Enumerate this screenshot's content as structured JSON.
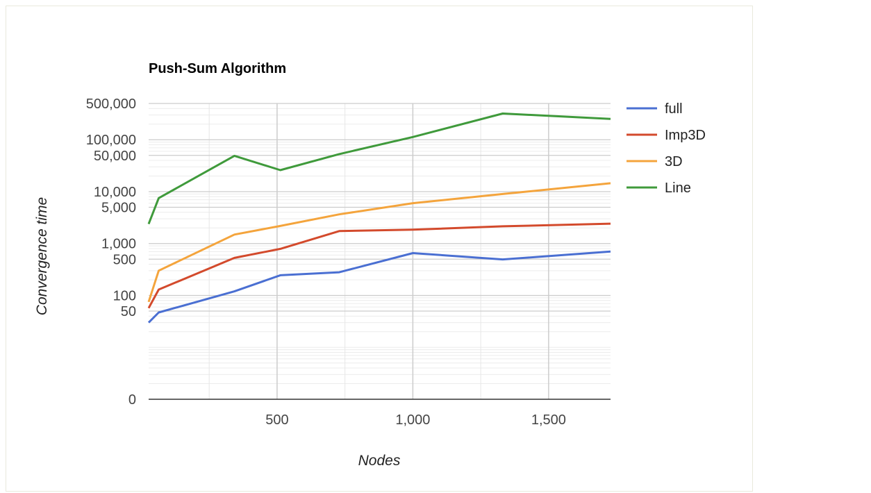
{
  "chart_data": {
    "type": "line",
    "title": "Push-Sum Algorithm",
    "xlabel": "Nodes",
    "ylabel": "Convergence time",
    "y_scale": "log",
    "ylim": [
      1,
      500000
    ],
    "xlim": [
      27,
      1728
    ],
    "grid": true,
    "legend_position": "right",
    "y_ticks": [
      {
        "value": 500000,
        "label": "500,000"
      },
      {
        "value": 100000,
        "label": "100,000"
      },
      {
        "value": 50000,
        "label": "50,000"
      },
      {
        "value": 10000,
        "label": "10,000"
      },
      {
        "value": 5000,
        "label": "5,000"
      },
      {
        "value": 1000,
        "label": "1,000"
      },
      {
        "value": 500,
        "label": "500"
      },
      {
        "value": 100,
        "label": "100"
      },
      {
        "value": 50,
        "label": "50"
      },
      {
        "value": 1,
        "label": "0"
      }
    ],
    "x_ticks": [
      {
        "value": 500,
        "label": "500"
      },
      {
        "value": 1000,
        "label": "1,000"
      },
      {
        "value": 1500,
        "label": "1,500"
      }
    ],
    "x": [
      27,
      64,
      343,
      512,
      729,
      1000,
      1331,
      1728
    ],
    "series": [
      {
        "name": "full",
        "color": "#4a6fd2",
        "values": [
          30,
          47,
          120,
          245,
          280,
          655,
          495,
          700
        ]
      },
      {
        "name": "Imp3D",
        "color": "#d34a2c",
        "values": [
          57,
          130,
          530,
          790,
          1740,
          1850,
          2150,
          2420
        ]
      },
      {
        "name": "3D",
        "color": "#f4a43c",
        "values": [
          75,
          300,
          1490,
          2180,
          3650,
          6000,
          9000,
          14500
        ]
      },
      {
        "name": "Line",
        "color": "#3f9a3b",
        "values": [
          2380,
          7500,
          49000,
          26000,
          53000,
          113000,
          320000,
          252000
        ]
      }
    ]
  }
}
